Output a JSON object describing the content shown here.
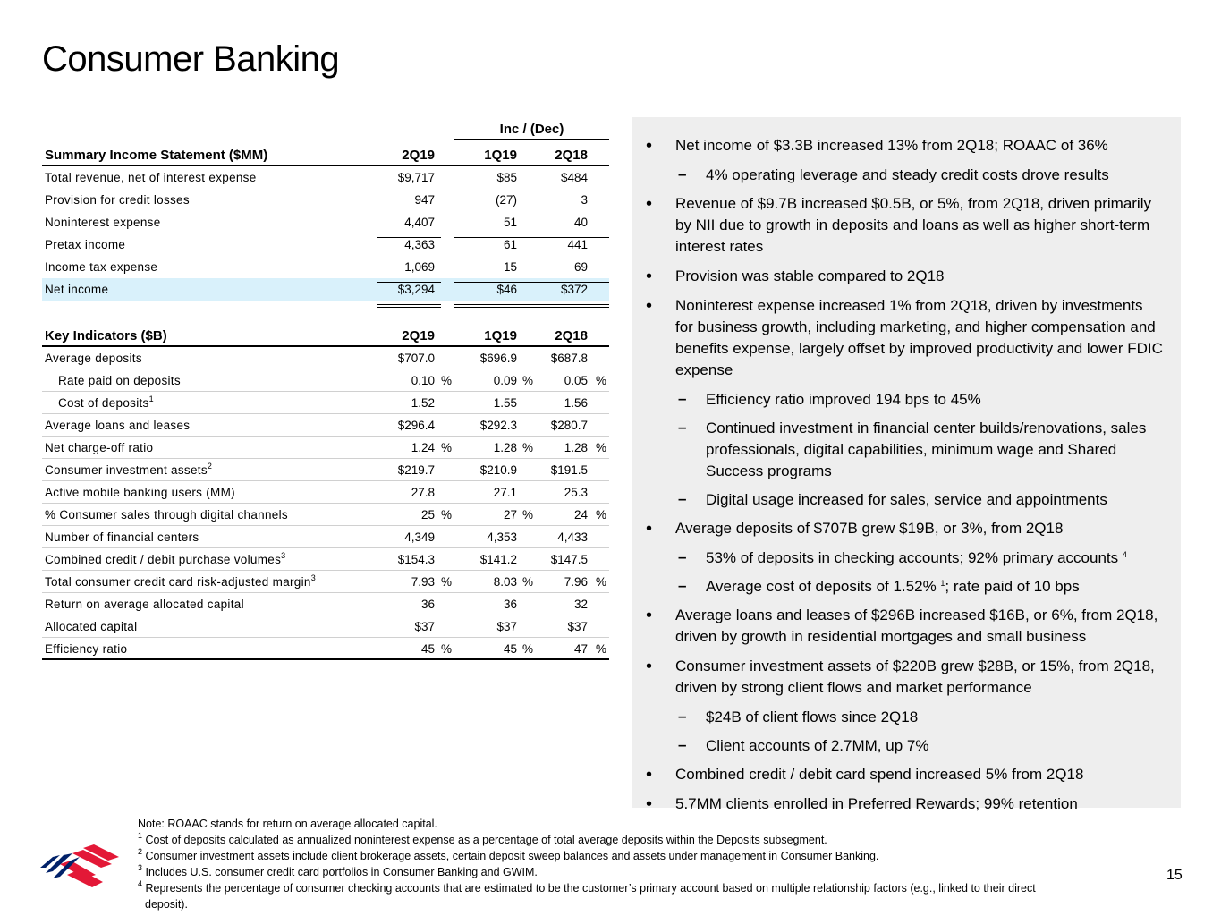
{
  "title": "Consumer Banking",
  "inc_dec_label": "Inc / (Dec)",
  "income_statement": {
    "header": [
      "Summary Income Statement ($MM)",
      "2Q19",
      "1Q19",
      "2Q18"
    ],
    "rows": [
      {
        "label": "Total revenue, net of interest expense",
        "v": [
          "$9,717",
          "$85",
          "$484"
        ]
      },
      {
        "label": "Provision for credit losses",
        "v": [
          "947",
          "(27)",
          "3"
        ]
      },
      {
        "label": "Noninterest expense",
        "v": [
          "4,407",
          "51",
          "40"
        ]
      },
      {
        "label": "Pretax income",
        "v": [
          "4,363",
          "61",
          "441"
        ]
      },
      {
        "label": "Income tax expense",
        "v": [
          "1,069",
          "15",
          "69"
        ]
      },
      {
        "label": "Net income",
        "v": [
          "$3,294",
          "$46",
          "$372"
        ],
        "highlight": true
      }
    ]
  },
  "key_indicators": {
    "header": [
      "Key Indicators ($B)",
      "2Q19",
      "1Q19",
      "2Q18"
    ],
    "rows": [
      {
        "label": "Average deposits",
        "v": [
          "$707.0",
          "$696.9",
          "$687.8"
        ]
      },
      {
        "label": "Rate paid on deposits",
        "v": [
          "0.10",
          "0.09",
          "0.05"
        ],
        "pct": true,
        "indent": true
      },
      {
        "label": "Cost of deposits",
        "sup": "1",
        "v": [
          "1.52",
          "1.55",
          "1.56"
        ],
        "indent": true
      },
      {
        "label": "Average loans and leases",
        "v": [
          "$296.4",
          "$292.3",
          "$280.7"
        ]
      },
      {
        "label": "Net charge-off ratio",
        "v": [
          "1.24",
          "1.28",
          "1.28"
        ],
        "pct": true
      },
      {
        "label": "Consumer investment assets",
        "sup": "2",
        "v": [
          "$219.7",
          "$210.9",
          "$191.5"
        ]
      },
      {
        "label": "Active mobile banking users (MM)",
        "v": [
          "27.8",
          "27.1",
          "25.3"
        ]
      },
      {
        "label": "% Consumer sales through digital channels",
        "v": [
          "25",
          "27",
          "24"
        ],
        "pct": true
      },
      {
        "label": "Number of financial centers",
        "v": [
          "4,349",
          "4,353",
          "4,433"
        ]
      },
      {
        "label": "Combined credit / debit purchase volumes",
        "sup": "3",
        "v": [
          "$154.3",
          "$141.2",
          "$147.5"
        ]
      },
      {
        "label": "Total consumer credit card risk-adjusted margin",
        "sup": "3",
        "v": [
          "7.93",
          "8.03",
          "7.96"
        ],
        "pct": true
      },
      {
        "label": "Return on average allocated capital",
        "v": [
          "36",
          "36",
          "32"
        ]
      },
      {
        "label": "Allocated capital",
        "v": [
          "$37",
          "$37",
          "$37"
        ]
      },
      {
        "label": "Efficiency ratio",
        "v": [
          "45",
          "45",
          "47"
        ],
        "pct": true
      }
    ]
  },
  "percent_sign": "%",
  "bullets": [
    {
      "t": "b",
      "text": "Net income of $3.3B increased 13% from 2Q18; ROAAC of 36%"
    },
    {
      "t": "s",
      "text": "4% operating leverage and steady credit costs drove results"
    },
    {
      "t": "b",
      "text": "Revenue of $9.7B increased $0.5B, or 5%, from 2Q18, driven primarily by NII due to growth in deposits and loans as well as higher short-term interest rates"
    },
    {
      "t": "b",
      "text": "Provision was stable compared to 2Q18"
    },
    {
      "t": "b",
      "text": "Noninterest expense increased 1% from 2Q18, driven by investments for business growth, including marketing, and higher compensation and benefits expense, largely offset by improved productivity and lower FDIC expense"
    },
    {
      "t": "s",
      "text": "Efficiency ratio improved 194 bps to 45%"
    },
    {
      "t": "s",
      "text": "Continued investment in financial center builds/renovations, sales professionals, digital capabilities, minimum wage and Shared Success programs"
    },
    {
      "t": "s",
      "text": "Digital usage increased for sales, service and appointments"
    },
    {
      "t": "b",
      "text": "Average deposits of $707B grew $19B, or 3%, from 2Q18"
    },
    {
      "t": "s",
      "text": "53% of deposits in checking accounts; 92% primary accounts ",
      "sup": "4"
    },
    {
      "t": "s",
      "text": "Average cost of deposits of 1.52% ",
      "sup": "1",
      "after": "; rate paid of 10 bps"
    },
    {
      "t": "b",
      "text": "Average loans and leases of $296B increased $16B, or 6%, from 2Q18, driven by growth in residential mortgages and small business"
    },
    {
      "t": "b",
      "text": "Consumer investment assets of $220B grew $28B, or 15%, from 2Q18, driven by strong client flows and market performance"
    },
    {
      "t": "s",
      "text": "$24B of client flows since 2Q18"
    },
    {
      "t": "s",
      "text": "Client accounts of 2.7MM, up 7%"
    },
    {
      "t": "b",
      "text": "Combined credit / debit card spend increased 5% from 2Q18"
    },
    {
      "t": "b",
      "text": "5.7MM clients enrolled in Preferred Rewards; 99% retention"
    }
  ],
  "notes": [
    {
      "text": "Note: ROAAC stands for return on average allocated capital."
    },
    {
      "sup": "1",
      "text": " Cost of deposits calculated as annualized noninterest expense as a percentage of total average deposits within the Deposits subsegment."
    },
    {
      "sup": "2",
      "text": " Consumer investment assets include client brokerage assets, certain deposit sweep balances and assets under management in Consumer Banking."
    },
    {
      "sup": "3",
      "text": " Includes U.S. consumer credit card portfolios in Consumer Banking and GWIM."
    },
    {
      "sup": "4",
      "text": " Represents the percentage of consumer checking accounts that are estimated to be the customer’s primary account based on multiple relationship factors (e.g., linked to their direct"
    },
    {
      "text": "deposit).",
      "cont": true
    }
  ],
  "page_number": "15",
  "colors": {
    "highlight": "#d9f1fb",
    "panel": "#eeeeee",
    "logo_red": "#e31837",
    "logo_blue": "#012169"
  }
}
